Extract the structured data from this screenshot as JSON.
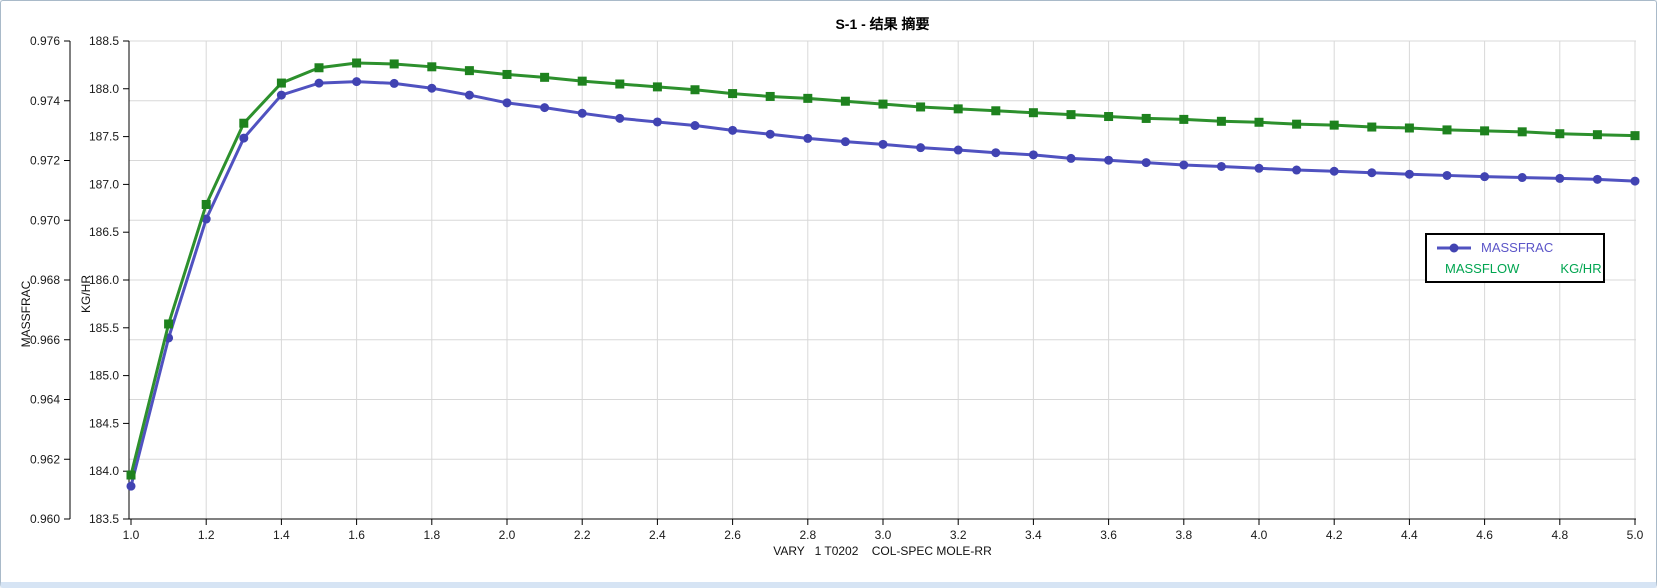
{
  "chart_data": {
    "type": "line",
    "title": "S-1 - 结果 摘要",
    "xlabel": "VARY   1 T0202    COL-SPEC MOLE-RR",
    "ylabel": "MASSFRAC",
    "y2label": "KG/HR",
    "xlim": [
      1.0,
      5.0
    ],
    "ylim": [
      0.96,
      0.976
    ],
    "y2lim": [
      183.5,
      188.5
    ],
    "grid": true,
    "legend_position": "right-middle",
    "x_ticks": [
      "1.0",
      "1.2",
      "1.4",
      "1.6",
      "1.8",
      "2.0",
      "2.2",
      "2.4",
      "2.6",
      "2.8",
      "3.0",
      "3.2",
      "3.4",
      "3.6",
      "3.8",
      "4.0",
      "4.2",
      "4.4",
      "4.6",
      "4.8",
      "5.0"
    ],
    "y_ticks": [
      "0.960",
      "0.962",
      "0.964",
      "0.966",
      "0.968",
      "0.970",
      "0.972",
      "0.974",
      "0.976"
    ],
    "y2_ticks": [
      "183.5",
      "184.0",
      "184.5",
      "185.0",
      "185.5",
      "186.0",
      "186.5",
      "187.0",
      "187.5",
      "188.0",
      "188.5"
    ],
    "x": [
      1.0,
      1.1,
      1.2,
      1.3,
      1.4,
      1.5,
      1.6,
      1.7,
      1.8,
      1.9,
      2.0,
      2.1,
      2.2,
      2.3,
      2.4,
      2.5,
      2.6,
      2.7,
      2.8,
      2.9,
      3.0,
      3.1,
      3.2,
      3.3,
      3.4,
      3.5,
      3.6,
      3.7,
      3.8,
      3.9,
      4.0,
      4.1,
      4.2,
      4.3,
      4.4,
      4.5,
      4.6,
      4.7,
      4.8,
      4.9,
      5.0
    ],
    "series": [
      {
        "name": "MASSFRAC",
        "units": "",
        "axis": "y1",
        "marker": "circle",
        "line_color": "#5052c0",
        "marker_color": "#4143b2",
        "text_color": "#5b55c8",
        "values": [
          0.9611,
          0.96606,
          0.97004,
          0.97275,
          0.97419,
          0.97459,
          0.97464,
          0.97458,
          0.97442,
          0.97419,
          0.97393,
          0.97377,
          0.97358,
          0.97341,
          0.97329,
          0.97317,
          0.97301,
          0.97288,
          0.97274,
          0.97263,
          0.97254,
          0.97243,
          0.97235,
          0.97226,
          0.97219,
          0.97207,
          0.97201,
          0.97193,
          0.97185,
          0.9718,
          0.97174,
          0.97168,
          0.97164,
          0.97159,
          0.97154,
          0.9715,
          0.97146,
          0.97143,
          0.9714,
          0.97137,
          0.97131
        ]
      },
      {
        "name": "MASSFLOW",
        "units": "KG/HR",
        "axis": "y2",
        "marker": "square",
        "line_color": "#2d902d",
        "marker_color": "#1e821e",
        "text_color": "#00a550",
        "values": [
          183.96,
          185.54,
          186.79,
          187.64,
          188.06,
          188.22,
          188.27,
          188.26,
          188.23,
          188.19,
          188.15,
          188.12,
          188.08,
          188.05,
          188.02,
          187.99,
          187.95,
          187.92,
          187.9,
          187.87,
          187.84,
          187.81,
          187.79,
          187.77,
          187.75,
          187.73,
          187.71,
          187.69,
          187.68,
          187.66,
          187.65,
          187.63,
          187.62,
          187.6,
          187.59,
          187.57,
          187.56,
          187.55,
          187.53,
          187.52,
          187.51
        ]
      }
    ],
    "colors": {
      "gridline": "#d8d8d8",
      "axis": "#000000",
      "tick_label": "#1a1a1a"
    }
  }
}
